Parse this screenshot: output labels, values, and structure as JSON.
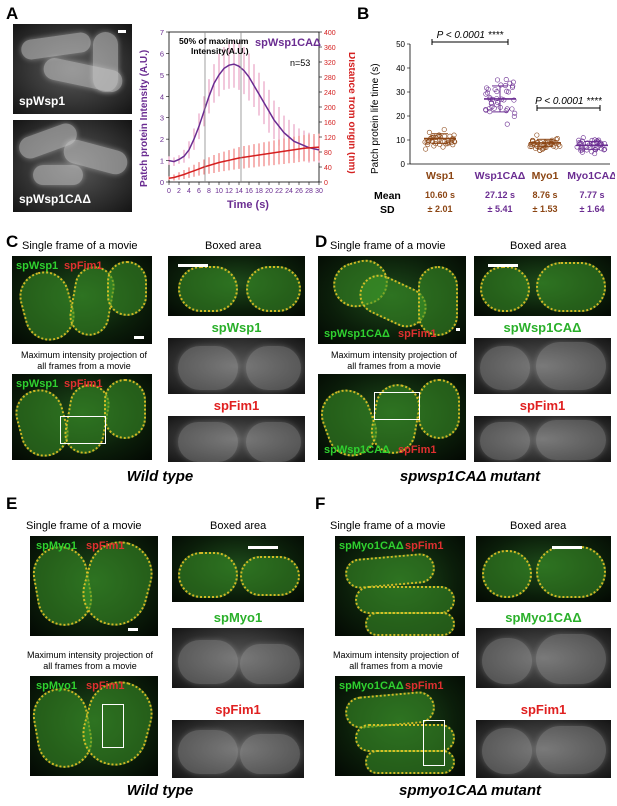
{
  "panels": {
    "a": "A",
    "b": "B",
    "c": "C",
    "d": "D",
    "e": "E",
    "f": "F"
  },
  "panel_a": {
    "img1_label": "spWsp1",
    "img2_label": "spWsp1CAΔ"
  },
  "panel_c": {
    "single_frame": "Single frame of a movie",
    "boxed": "Boxed area",
    "top_green": "spWsp1",
    "top_red": "spFim1",
    "mip": "Maximum intensity projection of all frames from a movie",
    "bot_green": "spWsp1",
    "bot_red": "spFim1",
    "chan_green": "spWsp1",
    "chan_red": "spFim1",
    "footer": "Wild type"
  },
  "panel_d": {
    "single_frame": "Single frame of a movie",
    "boxed": "Boxed area",
    "top_green": "spWsp1CAΔ",
    "top_red": "spFim1",
    "mip": "Maximum intensity projection of all frames from a movie",
    "bot_green": "spWsp1CAΔ",
    "bot_red": "spFim1",
    "chan_green": "spWsp1CAΔ",
    "chan_red": "spFim1",
    "footer": "spwsp1CAΔ mutant"
  },
  "panel_e": {
    "single_frame": "Single frame of a movie",
    "boxed": "Boxed area",
    "top_green": "spMyo1",
    "top_red": "spFim1",
    "mip": "Maximum intensity projection of all frames from a movie",
    "bot_green": "spMyo1",
    "bot_red": "spFim1",
    "chan_green": "spMyo1",
    "chan_red": "spFim1",
    "footer": "Wild type"
  },
  "panel_f": {
    "single_frame": "Single frame of a movie",
    "boxed": "Boxed area",
    "top_green": "spMyo1CAΔ",
    "top_red": "spFim1",
    "mip": "Maximum intensity projection of all frames from a movie",
    "bot_green": "spMyo1CAΔ",
    "bot_red": "spFim1",
    "chan_green": "spMyo1CAΔ",
    "chan_red": "spFim1",
    "footer": "spmyo1CAΔ mutant"
  },
  "colors": {
    "purple": "#6a2c91",
    "red": "#d42020",
    "brown": "#8b4513",
    "green_text": "#2ab02a"
  },
  "chart_data": [
    {
      "type": "line",
      "title": "spWsp1CAΔ",
      "annotation": "50% of maximum Intensity(A.U.)",
      "n_label": "n=53",
      "xlabel": "Time (s)",
      "ylabel_left": "Patch protein Intensity   (A.U.)",
      "ylabel_right": "Distance from origin (nm)",
      "xlim": [
        0,
        30
      ],
      "ylim_left": [
        0,
        7
      ],
      "ylim_right": [
        0,
        400
      ],
      "x_ticks": [
        "0",
        "2",
        "4",
        "6",
        "8",
        "10",
        "12",
        "14",
        "16",
        "18",
        "20",
        "22",
        "24",
        "26",
        "28",
        "30"
      ],
      "y_left_ticks": [
        "0",
        "1",
        "2",
        "3",
        "4",
        "5",
        "6",
        "7"
      ],
      "y_right_ticks": [
        "0",
        "40",
        "80",
        "120",
        "160",
        "200",
        "240",
        "280",
        "320",
        "360",
        "400"
      ],
      "series": [
        {
          "color": "#6a2c91",
          "axis": "left",
          "x": [
            0,
            1,
            2,
            3,
            4,
            5,
            6,
            7,
            8,
            9,
            10,
            11,
            12,
            13,
            14,
            15,
            16,
            17,
            18,
            19,
            20,
            21,
            22,
            23,
            24,
            25,
            26,
            27,
            28,
            29,
            30
          ],
          "y": [
            1.0,
            0.95,
            1.05,
            1.2,
            1.5,
            2.0,
            2.6,
            3.3,
            4.0,
            4.6,
            5.0,
            5.3,
            5.45,
            5.5,
            5.4,
            5.2,
            4.9,
            4.5,
            4.1,
            3.7,
            3.3,
            2.9,
            2.6,
            2.3,
            2.1,
            1.9,
            1.8,
            1.7,
            1.6,
            1.55,
            1.5
          ],
          "err": [
            0.2,
            0.2,
            0.2,
            0.3,
            0.4,
            0.5,
            0.6,
            0.7,
            0.8,
            0.9,
            1.0,
            1.0,
            1.1,
            1.1,
            1.1,
            1.1,
            1.1,
            1.0,
            1.0,
            1.0,
            1.0,
            0.9,
            0.9,
            0.8,
            0.8,
            0.8,
            0.7,
            0.7,
            0.7,
            0.6,
            0.6
          ]
        },
        {
          "color": "#d42020",
          "axis": "right",
          "x": [
            0,
            1,
            2,
            3,
            4,
            5,
            6,
            7,
            8,
            9,
            10,
            11,
            12,
            13,
            14,
            15,
            16,
            17,
            18,
            19,
            20,
            21,
            22,
            23,
            24,
            25,
            26,
            27,
            28,
            29,
            30
          ],
          "y": [
            10,
            12,
            16,
            20,
            25,
            30,
            35,
            40,
            44,
            48,
            52,
            55,
            58,
            61,
            64,
            66,
            68,
            70,
            72,
            74,
            76,
            78,
            80,
            82,
            84,
            86,
            88,
            90,
            91,
            92,
            93
          ],
          "err": [
            5,
            8,
            10,
            12,
            14,
            16,
            18,
            20,
            22,
            24,
            25,
            26,
            27,
            28,
            29,
            30,
            30,
            31,
            31,
            32,
            32,
            33,
            33,
            34,
            34,
            35,
            35,
            35,
            36,
            36,
            36
          ]
        }
      ]
    },
    {
      "type": "scatter",
      "ylabel": "Patch protein life time (s)",
      "ylim": [
        0,
        50
      ],
      "y_ticks": [
        "0",
        "10",
        "20",
        "30",
        "40",
        "50"
      ],
      "categories": [
        "Wsp1",
        "Wsp1CAΔ",
        "Myo1",
        "Myo1CAΔ"
      ],
      "category_colors": [
        "#8b4513",
        "#6a2c91",
        "#8b4513",
        "#6a2c91"
      ],
      "means": [
        10.6,
        27.12,
        8.76,
        7.77
      ],
      "sd": [
        2.01,
        5.41,
        1.53,
        1.64
      ],
      "mean_labels": [
        "10.60 s",
        "27.12 s",
        "8.76 s",
        "7.77 s"
      ],
      "sd_labels": [
        "± 2.01",
        "± 5.41",
        "± 1.53",
        "± 1.64"
      ],
      "row_label_mean": "Mean",
      "row_label_sd": "SD",
      "significance": [
        {
          "between": [
            0,
            1
          ],
          "text": "P < 0.0001 ****"
        },
        {
          "between": [
            2,
            3
          ],
          "text": "P < 0.0001 ****"
        }
      ]
    }
  ]
}
